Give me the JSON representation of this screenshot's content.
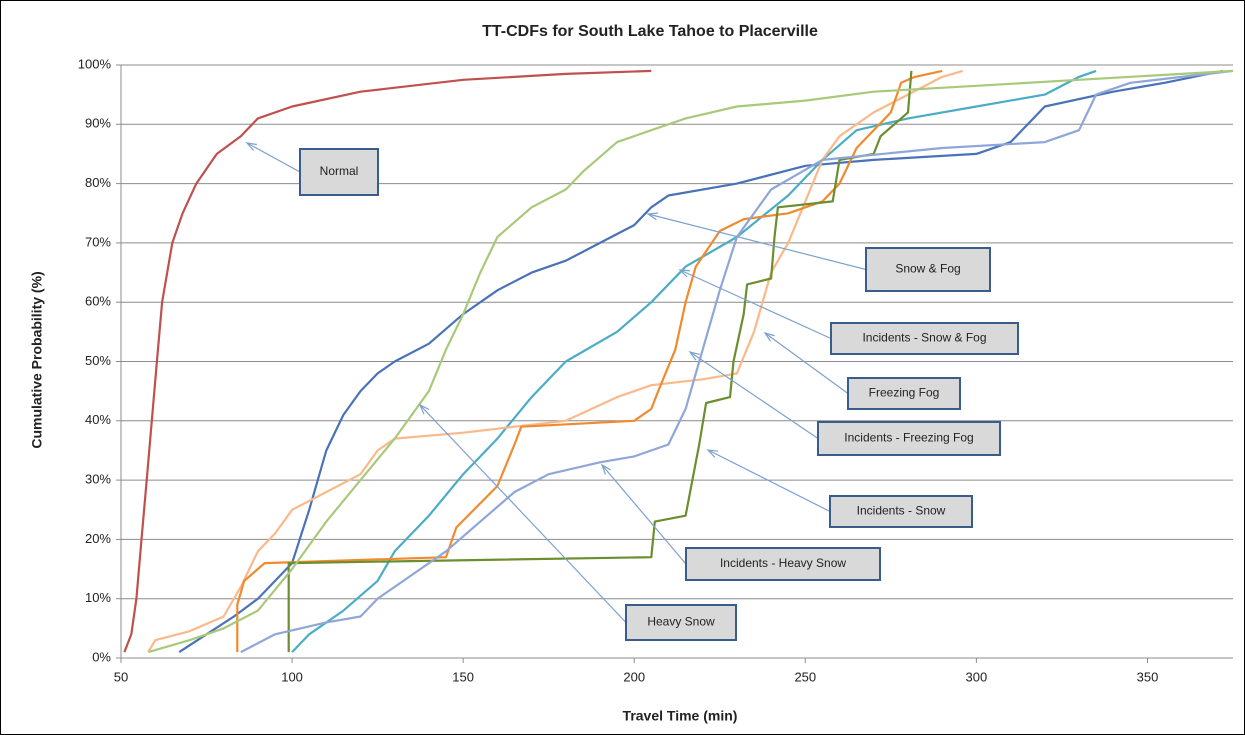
{
  "chart_data": {
    "type": "line",
    "title": "TT-CDFs for South Lake Tahoe to Placerville",
    "x_label": "Travel Time (min)",
    "y_label": "Cumulative Probability (%)",
    "xlim": [
      50,
      375
    ],
    "xticks": [
      50,
      100,
      150,
      200,
      250,
      300,
      350
    ],
    "ylim": [
      0,
      100
    ],
    "yticks": [
      {
        "value": 0,
        "label": "0%"
      },
      {
        "value": 10,
        "label": "10%"
      },
      {
        "value": 20,
        "label": "20%"
      },
      {
        "value": 30,
        "label": "30%"
      },
      {
        "value": 40,
        "label": "40%"
      },
      {
        "value": 50,
        "label": "50%"
      },
      {
        "value": 60,
        "label": "60%"
      },
      {
        "value": 70,
        "label": "70%"
      },
      {
        "value": 80,
        "label": "80%"
      },
      {
        "value": 90,
        "label": "90%"
      },
      {
        "value": 100,
        "label": "100%"
      }
    ],
    "grid": true,
    "series": [
      {
        "name": "Normal",
        "color": "#c0504d",
        "x": [
          51,
          53,
          54.5,
          56,
          57.5,
          59,
          60.5,
          62,
          65,
          68,
          72,
          78,
          85,
          90,
          100,
          120,
          150,
          180,
          205
        ],
        "values": [
          1,
          4,
          10,
          20,
          30,
          40,
          50,
          60,
          70,
          75,
          80,
          85,
          88,
          91,
          93,
          95.5,
          97.5,
          98.5,
          99
        ]
      },
      {
        "name": "Snow & Fog",
        "color": "#4a72b8",
        "x": [
          67,
          75,
          83,
          90,
          100,
          105,
          110,
          115,
          120,
          125,
          130,
          140,
          150,
          160,
          170,
          180,
          190,
          200,
          205,
          210,
          230,
          250,
          270,
          300,
          310,
          320,
          340,
          355,
          372
        ],
        "values": [
          1,
          4,
          7,
          10,
          16,
          25,
          35,
          41,
          45,
          48,
          50,
          53,
          58,
          62,
          65,
          67,
          70,
          73,
          76,
          78,
          80,
          83,
          84,
          85,
          87,
          93,
          95.5,
          97,
          99
        ]
      },
      {
        "name": "Incidents - Snow & Fog",
        "color": "#4bacc6",
        "x": [
          100,
          105,
          115,
          125,
          130,
          140,
          150,
          160,
          170,
          180,
          195,
          205,
          215,
          230,
          245,
          255,
          265,
          280,
          300,
          320,
          330,
          335
        ],
        "values": [
          1,
          4,
          8,
          13,
          18,
          24,
          31,
          37,
          44,
          50,
          55,
          60,
          66,
          71,
          78,
          84,
          89,
          91,
          93,
          95,
          98,
          99
        ]
      },
      {
        "name": "Freezing Fog",
        "color": "#fab98a",
        "x": [
          58,
          60,
          70,
          80,
          85,
          90,
          95,
          100,
          110,
          120,
          125,
          130,
          150,
          165,
          180,
          195,
          205,
          220,
          230,
          235,
          240,
          245,
          250,
          255,
          260,
          270,
          280,
          290,
          296
        ],
        "values": [
          1,
          3,
          4.5,
          7,
          12,
          18,
          21,
          25,
          28,
          31,
          35,
          37,
          38,
          39,
          40,
          44,
          46,
          47,
          48,
          55,
          65,
          70,
          77,
          84,
          88,
          92,
          95,
          98,
          99
        ]
      },
      {
        "name": "Incidents - Freezing Fog",
        "color": "#f08a2e",
        "x": [
          84,
          84,
          86,
          90,
          92,
          145,
          148,
          160,
          165,
          167,
          200,
          205,
          207,
          212,
          215,
          218,
          225,
          232,
          245,
          255,
          260,
          265,
          275,
          278,
          282,
          290
        ],
        "values": [
          1,
          9,
          13,
          15,
          16,
          17,
          22,
          29,
          36,
          39,
          40,
          42,
          45,
          52,
          60,
          66,
          72,
          74,
          75,
          77,
          80,
          86,
          92,
          97,
          98,
          99
        ]
      },
      {
        "name": "Incidents - Snow",
        "color": "#6b8e2f",
        "x": [
          99,
          99,
          205,
          206,
          215,
          217,
          219,
          221,
          228,
          229,
          232,
          233,
          240,
          241,
          242,
          258,
          260,
          270,
          272,
          280,
          281
        ],
        "values": [
          1,
          16,
          17,
          23,
          24,
          30,
          36,
          43,
          44,
          50,
          58,
          63,
          64,
          71,
          76,
          77,
          84,
          85,
          88,
          92,
          99
        ]
      },
      {
        "name": "Incidents - Heavy Snow",
        "color": "#8ea6d8",
        "x": [
          85,
          95,
          110,
          120,
          125,
          135,
          145,
          155,
          165,
          175,
          190,
          200,
          210,
          215,
          220,
          225,
          230,
          240,
          255,
          290,
          320,
          330,
          335,
          345,
          360,
          375
        ],
        "values": [
          1,
          4,
          6,
          7,
          10,
          14,
          18,
          23,
          28,
          31,
          33,
          34,
          36,
          42,
          52,
          62,
          71,
          79,
          84,
          86,
          87,
          89,
          95,
          97,
          98,
          99
        ]
      },
      {
        "name": "Heavy Snow",
        "color": "#a9c97a",
        "x": [
          58,
          70,
          80,
          90,
          100,
          110,
          120,
          130,
          140,
          145,
          150,
          155,
          160,
          170,
          180,
          185,
          195,
          205,
          215,
          230,
          250,
          270,
          300,
          330,
          375
        ],
        "values": [
          1,
          3,
          5,
          8,
          15,
          23,
          30,
          37,
          45,
          52,
          58,
          65,
          71,
          76,
          79,
          82,
          87,
          89,
          91,
          93,
          94,
          95.5,
          96.5,
          97.5,
          99
        ]
      }
    ]
  }
}
